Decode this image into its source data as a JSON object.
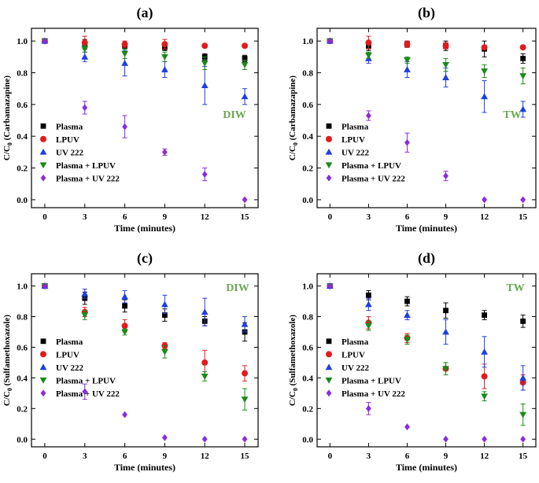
{
  "series_styles": [
    {
      "name": "Plasma",
      "marker": "square",
      "color": "#000000"
    },
    {
      "name": "LPUV",
      "marker": "circle",
      "color": "#e31a1c"
    },
    {
      "name": "UV 222",
      "marker": "triangle-up",
      "color": "#1f3fe0"
    },
    {
      "name": "Plasma + LPUV",
      "marker": "triangle-down",
      "color": "#1a8a1a"
    },
    {
      "name": "Plasma + UV 222",
      "marker": "diamond",
      "color": "#8a2be2"
    }
  ],
  "chart_data": [
    {
      "type": "scatter",
      "panel_label": "(a)",
      "water_label": "DIW",
      "xlabel": "Time (minutes)",
      "ylabel": "C/C0 (Carbamazapine)",
      "ylabel_main": "C/C",
      "ylabel_sub": "0",
      "ylabel_rest": " (Carbamazapine)",
      "xlim": [
        -1,
        16
      ],
      "ylim": [
        -0.05,
        1.08
      ],
      "x_ticks": [
        0,
        3,
        6,
        9,
        12,
        15
      ],
      "y_ticks": [
        "0.0",
        "0.2",
        "0.4",
        "0.6",
        "0.8",
        "1.0"
      ],
      "legend_position": "bottom-left",
      "series": [
        {
          "name": "Plasma",
          "x": [
            0,
            3,
            6,
            9,
            12,
            15
          ],
          "y": [
            1.0,
            0.98,
            0.97,
            0.96,
            0.9,
            0.89
          ],
          "err": [
            0,
            0.03,
            0.02,
            0.02,
            0.02,
            0.02
          ]
        },
        {
          "name": "LPUV",
          "x": [
            0,
            3,
            6,
            9,
            12,
            15
          ],
          "y": [
            1.0,
            0.99,
            0.98,
            0.98,
            0.97,
            0.97
          ],
          "err": [
            0,
            0.04,
            0.02,
            0.03,
            0.01,
            0.01
          ]
        },
        {
          "name": "UV 222",
          "x": [
            0,
            3,
            6,
            9,
            12,
            15
          ],
          "y": [
            1.0,
            0.9,
            0.86,
            0.82,
            0.72,
            0.65
          ],
          "err": [
            0,
            0.03,
            0.08,
            0.05,
            0.12,
            0.05
          ]
        },
        {
          "name": "Plasma + LPUV",
          "x": [
            0,
            3,
            6,
            9,
            12,
            15
          ],
          "y": [
            1.0,
            0.95,
            0.92,
            0.9,
            0.86,
            0.85
          ],
          "err": [
            0,
            0.02,
            0.03,
            0.03,
            0.04,
            0.03
          ]
        },
        {
          "name": "Plasma + UV 222",
          "x": [
            0,
            3,
            6,
            9,
            12,
            15
          ],
          "y": [
            1.0,
            0.58,
            0.46,
            0.3,
            0.16,
            0.0
          ],
          "err": [
            0,
            0.04,
            0.07,
            0.02,
            0.04,
            0.0
          ]
        }
      ]
    },
    {
      "type": "scatter",
      "panel_label": "(b)",
      "water_label": "TW",
      "xlabel": "Time (minutes)",
      "ylabel": "C/C0 (Carbamazapine)",
      "ylabel_main": "C/C",
      "ylabel_sub": "0",
      "ylabel_rest": " (Carbamazapine)",
      "xlim": [
        -1,
        16
      ],
      "ylim": [
        -0.05,
        1.08
      ],
      "x_ticks": [
        0,
        3,
        6,
        9,
        12,
        15
      ],
      "y_ticks": [
        "0.0",
        "0.2",
        "0.4",
        "0.6",
        "0.8",
        "1.0"
      ],
      "legend_position": "bottom-left",
      "series": [
        {
          "name": "Plasma",
          "x": [
            0,
            3,
            6,
            9,
            12,
            15
          ],
          "y": [
            1.0,
            0.97,
            0.98,
            0.97,
            0.95,
            0.89
          ],
          "err": [
            0,
            0.03,
            0.02,
            0.03,
            0.05,
            0.03
          ]
        },
        {
          "name": "LPUV",
          "x": [
            0,
            3,
            6,
            9,
            12,
            15
          ],
          "y": [
            1.0,
            0.99,
            0.98,
            0.97,
            0.96,
            0.96
          ],
          "err": [
            0,
            0.04,
            0.02,
            0.02,
            0.01,
            0.01
          ]
        },
        {
          "name": "UV 222",
          "x": [
            0,
            3,
            6,
            9,
            12,
            15
          ],
          "y": [
            1.0,
            0.89,
            0.82,
            0.77,
            0.65,
            0.57
          ],
          "err": [
            0,
            0.03,
            0.05,
            0.06,
            0.1,
            0.05
          ]
        },
        {
          "name": "Plasma + LPUV",
          "x": [
            0,
            3,
            6,
            9,
            12,
            15
          ],
          "y": [
            1.0,
            0.91,
            0.88,
            0.85,
            0.81,
            0.78
          ],
          "err": [
            0,
            0.02,
            0.02,
            0.04,
            0.04,
            0.05
          ]
        },
        {
          "name": "Plasma + UV 222",
          "x": [
            0,
            3,
            6,
            9,
            12,
            15
          ],
          "y": [
            1.0,
            0.53,
            0.36,
            0.15,
            0.0,
            0.0
          ],
          "err": [
            0,
            0.03,
            0.06,
            0.03,
            0.0,
            0.0
          ]
        }
      ]
    },
    {
      "type": "scatter",
      "panel_label": "(c)",
      "water_label": "DIW",
      "xlabel": "Time (minutes)",
      "ylabel": "C/C0 (Sulfamethoxazole)",
      "ylabel_main": "C/C",
      "ylabel_sub": "0",
      "ylabel_rest": " (Sulfamethoxazole)",
      "xlim": [
        -1,
        16
      ],
      "ylim": [
        -0.05,
        1.08
      ],
      "x_ticks": [
        0,
        3,
        6,
        9,
        12,
        15
      ],
      "y_ticks": [
        "0.0",
        "0.2",
        "0.4",
        "0.6",
        "0.8",
        "1.0"
      ],
      "legend_position": "center-left",
      "series": [
        {
          "name": "Plasma",
          "x": [
            0,
            3,
            6,
            9,
            12,
            15
          ],
          "y": [
            1.0,
            0.92,
            0.87,
            0.81,
            0.77,
            0.7
          ],
          "err": [
            0,
            0.04,
            0.04,
            0.04,
            0.03,
            0.06
          ]
        },
        {
          "name": "LPUV",
          "x": [
            0,
            3,
            6,
            9,
            12,
            15
          ],
          "y": [
            1.0,
            0.83,
            0.74,
            0.61,
            0.5,
            0.43
          ],
          "err": [
            0,
            0.03,
            0.04,
            0.02,
            0.08,
            0.05
          ]
        },
        {
          "name": "UV 222",
          "x": [
            0,
            3,
            6,
            9,
            12,
            15
          ],
          "y": [
            1.0,
            0.95,
            0.93,
            0.88,
            0.83,
            0.75
          ],
          "err": [
            0,
            0.03,
            0.04,
            0.06,
            0.09,
            0.05
          ]
        },
        {
          "name": "Plasma + LPUV",
          "x": [
            0,
            3,
            6,
            9,
            12,
            15
          ],
          "y": [
            1.0,
            0.81,
            0.7,
            0.57,
            0.41,
            0.26
          ],
          "err": [
            0,
            0.03,
            0.02,
            0.04,
            0.03,
            0.07
          ]
        },
        {
          "name": "Plasma + UV 222",
          "x": [
            0,
            3,
            6,
            9,
            12,
            15
          ],
          "y": [
            1.0,
            0.31,
            0.16,
            0.01,
            0.0,
            0.0
          ],
          "err": [
            0,
            0.05,
            0.0,
            0.0,
            0.0,
            0.0
          ]
        }
      ]
    },
    {
      "type": "scatter",
      "panel_label": "(d)",
      "water_label": "TW",
      "xlabel": "Time (minutes)",
      "ylabel": "C/C0 (Sulfamethoxazole)",
      "ylabel_main": "C/C",
      "ylabel_sub": "0",
      "ylabel_rest": " (Sulfamethoxazole)",
      "xlim": [
        -1,
        16
      ],
      "ylim": [
        -0.05,
        1.08
      ],
      "x_ticks": [
        0,
        3,
        6,
        9,
        12,
        15
      ],
      "y_ticks": [
        "0.0",
        "0.2",
        "0.4",
        "0.6",
        "0.8",
        "1.0"
      ],
      "legend_position": "center-left",
      "series": [
        {
          "name": "Plasma",
          "x": [
            0,
            3,
            6,
            9,
            12,
            15
          ],
          "y": [
            1.0,
            0.94,
            0.9,
            0.84,
            0.81,
            0.77
          ],
          "err": [
            0,
            0.03,
            0.03,
            0.05,
            0.03,
            0.04
          ]
        },
        {
          "name": "LPUV",
          "x": [
            0,
            3,
            6,
            9,
            12,
            15
          ],
          "y": [
            1.0,
            0.76,
            0.66,
            0.46,
            0.41,
            0.37
          ],
          "err": [
            0,
            0.04,
            0.03,
            0.04,
            0.08,
            0.05
          ]
        },
        {
          "name": "UV 222",
          "x": [
            0,
            3,
            6,
            9,
            12,
            15
          ],
          "y": [
            1.0,
            0.88,
            0.81,
            0.7,
            0.57,
            0.4
          ],
          "err": [
            0,
            0.04,
            0.03,
            0.08,
            0.1,
            0.08
          ]
        },
        {
          "name": "Plasma + LPUV",
          "x": [
            0,
            3,
            6,
            9,
            12,
            15
          ],
          "y": [
            1.0,
            0.74,
            0.65,
            0.46,
            0.28,
            0.16
          ],
          "err": [
            0,
            0.03,
            0.03,
            0.04,
            0.03,
            0.07
          ]
        },
        {
          "name": "Plasma + UV 222",
          "x": [
            0,
            3,
            6,
            9,
            12,
            15
          ],
          "y": [
            1.0,
            0.2,
            0.08,
            0.0,
            0.0,
            0.0
          ],
          "err": [
            0,
            0.04,
            0.0,
            0.0,
            0.0,
            0.0
          ]
        }
      ]
    }
  ]
}
